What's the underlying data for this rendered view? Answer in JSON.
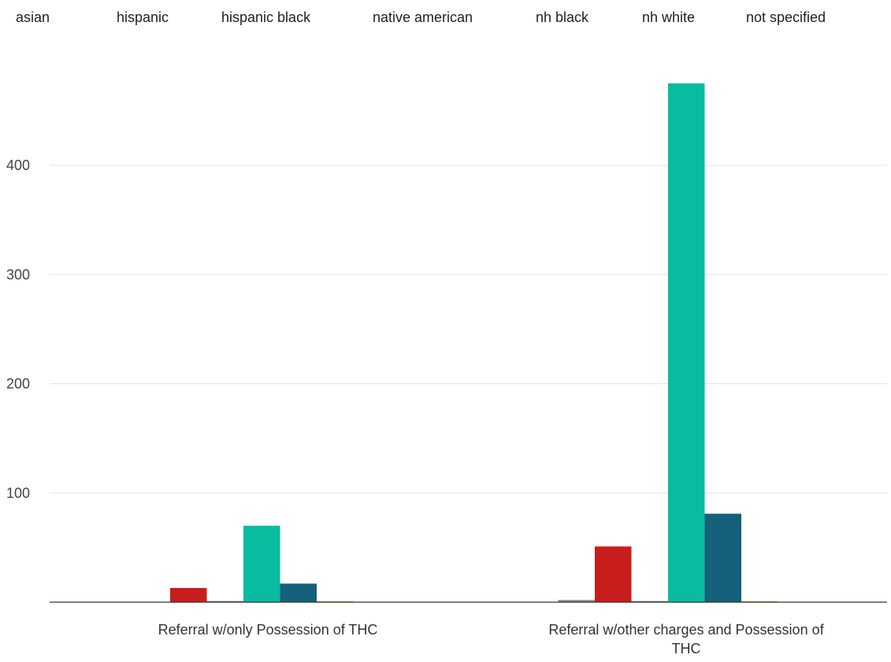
{
  "chart_data": {
    "type": "bar",
    "categories": [
      "Referral w/only Possession of THC",
      "Referral w/other charges and Possession of THC"
    ],
    "series": [
      {
        "name": "asian",
        "color": "#8a8a8a",
        "values": [
          0,
          0
        ]
      },
      {
        "name": "hispanic",
        "color": "#8a8a8a",
        "values": [
          0,
          2
        ]
      },
      {
        "name": "hispanic black",
        "color": "#c71e1d",
        "values": [
          13,
          51
        ]
      },
      {
        "name": "native american",
        "color": "#6f6f6f",
        "values": [
          1,
          1
        ]
      },
      {
        "name": "nh black",
        "color": "#09bb9f",
        "values": [
          70,
          475
        ]
      },
      {
        "name": "nh white",
        "color": "#15607a",
        "values": [
          17,
          81
        ]
      },
      {
        "name": "not specified",
        "color": "#c89a1a",
        "values": [
          0.5,
          0.5
        ]
      }
    ],
    "y_ticks": [
      100,
      200,
      300,
      400
    ],
    "ylim": [
      0,
      490
    ],
    "grid": true,
    "legend_position": "top"
  }
}
